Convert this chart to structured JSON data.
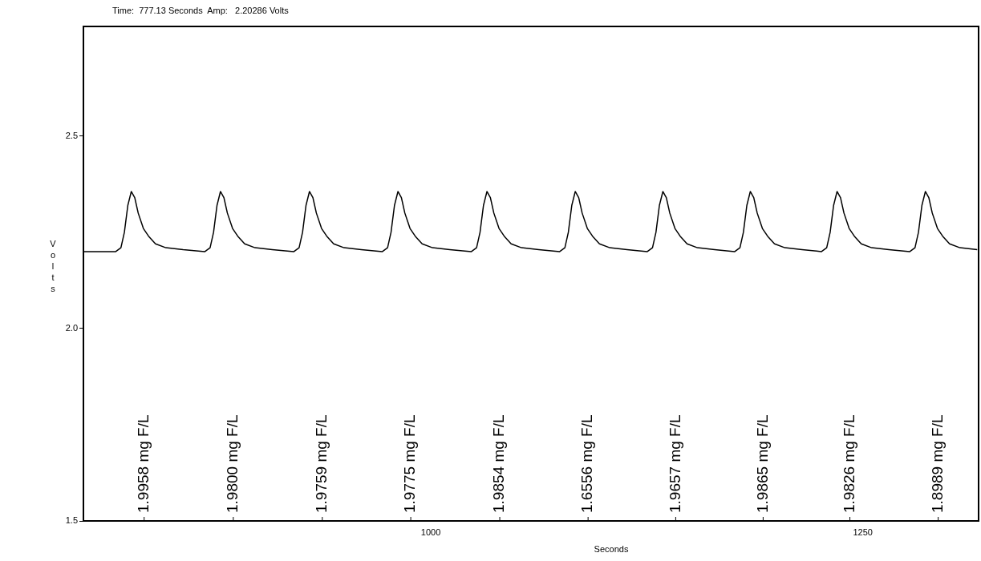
{
  "chart_data": {
    "type": "line",
    "title": "Time:  777.13 Seconds  Amp:   2.20286 Volts",
    "xlabel": "Seconds",
    "ylabel": "Volts",
    "xlim": [
      799,
      1317
    ],
    "xticks": [
      1000,
      1250
    ],
    "ylim": [
      1.5,
      2.785
    ],
    "yticks": [
      {
        "value": 1.5,
        "label": "1.5"
      },
      {
        "value": 2,
        "label": "2.0"
      },
      {
        "value": 2.5,
        "label": "2.5"
      }
    ],
    "grid": false,
    "legend": false,
    "marker": "none",
    "line_style": "solid",
    "series": [
      {
        "color": "#000000",
        "x": [
          799,
          817.7,
          820.7,
          822.7,
          824.7,
          826.7,
          828.7,
          830.7,
          833.7,
          836.7,
          840.7,
          846.7,
          856.7,
          869.3,
          872.3,
          874.3,
          876.3,
          878.3,
          880.3,
          882.3,
          885.3,
          888.3,
          892.3,
          898.3,
          908.3,
          920.8,
          923.8,
          925.8,
          927.8,
          929.8,
          931.8,
          933.8,
          936.8,
          939.8,
          943.8,
          949.8,
          959.8,
          972,
          975,
          977,
          979,
          981,
          983,
          985,
          988,
          991,
          995,
          1001,
          1011,
          1023.5,
          1026.5,
          1028.5,
          1030.5,
          1032.5,
          1034.5,
          1036.5,
          1039.5,
          1042.5,
          1046.5,
          1052.5,
          1062.5,
          1074.6,
          1077.6,
          1079.6,
          1081.6,
          1083.6,
          1085.6,
          1087.6,
          1090.6,
          1093.6,
          1097.6,
          1103.6,
          1113.6,
          1125.3,
          1128.3,
          1130.3,
          1132.3,
          1134.3,
          1136.3,
          1138.3,
          1141.3,
          1144.3,
          1148.3,
          1154.3,
          1164.3,
          1175.9,
          1178.9,
          1180.9,
          1182.9,
          1184.9,
          1186.9,
          1188.9,
          1191.9,
          1194.9,
          1198.9,
          1204.9,
          1214.9,
          1226.1,
          1229.1,
          1231.1,
          1233.1,
          1235.1,
          1237.1,
          1239.1,
          1242.1,
          1245.1,
          1249.1,
          1255.1,
          1265.1,
          1277.2,
          1280.2,
          1282.2,
          1284.2,
          1286.2,
          1288.2,
          1290.2,
          1293.2,
          1296.2,
          1300.2,
          1306.2,
          1316.2
        ],
        "values": [
          2.2,
          2.2,
          2.21,
          2.25,
          2.32,
          2.356,
          2.34,
          2.3,
          2.26,
          2.24,
          2.22,
          2.21,
          2.205,
          2.2,
          2.21,
          2.25,
          2.32,
          2.356,
          2.34,
          2.3,
          2.26,
          2.24,
          2.22,
          2.21,
          2.205,
          2.2,
          2.21,
          2.25,
          2.32,
          2.356,
          2.34,
          2.3,
          2.26,
          2.24,
          2.22,
          2.21,
          2.205,
          2.2,
          2.21,
          2.25,
          2.32,
          2.356,
          2.34,
          2.3,
          2.26,
          2.24,
          2.22,
          2.21,
          2.205,
          2.2,
          2.21,
          2.25,
          2.32,
          2.356,
          2.34,
          2.3,
          2.26,
          2.24,
          2.22,
          2.21,
          2.205,
          2.2,
          2.21,
          2.25,
          2.32,
          2.356,
          2.34,
          2.3,
          2.26,
          2.24,
          2.22,
          2.21,
          2.205,
          2.2,
          2.21,
          2.25,
          2.32,
          2.356,
          2.34,
          2.3,
          2.26,
          2.24,
          2.22,
          2.21,
          2.205,
          2.2,
          2.21,
          2.25,
          2.32,
          2.356,
          2.34,
          2.3,
          2.26,
          2.24,
          2.22,
          2.21,
          2.205,
          2.2,
          2.21,
          2.25,
          2.32,
          2.356,
          2.34,
          2.3,
          2.26,
          2.24,
          2.22,
          2.21,
          2.205,
          2.2,
          2.21,
          2.25,
          2.32,
          2.356,
          2.34,
          2.3,
          2.26,
          2.24,
          2.22,
          2.21,
          2.205
        ]
      }
    ],
    "annotations": [
      "1.9958 mg F/L",
      "1.9800 mg F/L",
      "1.9759 mg F/L",
      "1.9775 mg F/L",
      "1.9854 mg F/L",
      "1.6556 mg F/L",
      "1.9657 mg F/L",
      "1.9865 mg F/L",
      "1.9826 mg F/L",
      "1.8989 mg F/L"
    ]
  }
}
